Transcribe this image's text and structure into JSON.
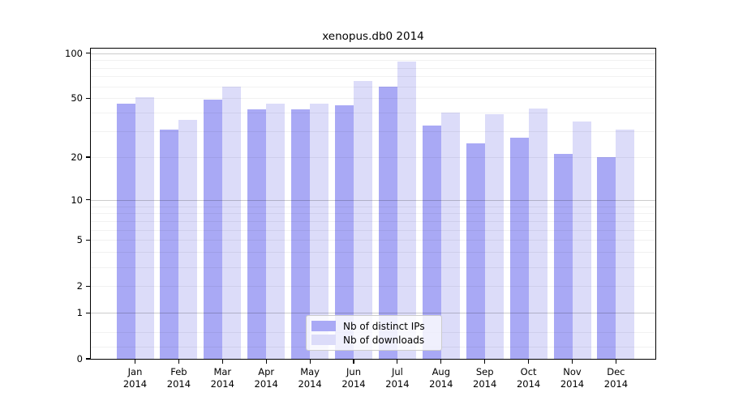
{
  "title": "xenopus.db0 2014",
  "chart_data": {
    "type": "bar",
    "title": "xenopus.db0 2014",
    "categories": [
      "Jan 2014",
      "Feb 2014",
      "Mar 2014",
      "Apr 2014",
      "May 2014",
      "Jun 2014",
      "Jul 2014",
      "Aug 2014",
      "Sep 2014",
      "Oct 2014",
      "Nov 2014",
      "Dec 2014"
    ],
    "series": [
      {
        "name": "Nb of distinct IPs",
        "color": "#a9a9f5",
        "values": [
          46,
          31,
          49,
          42,
          42,
          45,
          60,
          33,
          25,
          27,
          21,
          20
        ]
      },
      {
        "name": "Nb of downloads",
        "color": "#dcdcf9",
        "values": [
          51,
          36,
          60,
          46,
          46,
          65,
          88,
          40,
          39,
          43,
          35,
          31
        ]
      }
    ],
    "y_scale": "log1p",
    "y_ticks": [
      0,
      1,
      2,
      5,
      10,
      20,
      50,
      100
    ],
    "ylim": [
      0,
      107
    ],
    "xlabel": "",
    "ylabel": "",
    "grid": true,
    "legend_position": "lower center",
    "colors": {
      "axis": "#000000",
      "background": "#ffffff"
    }
  }
}
